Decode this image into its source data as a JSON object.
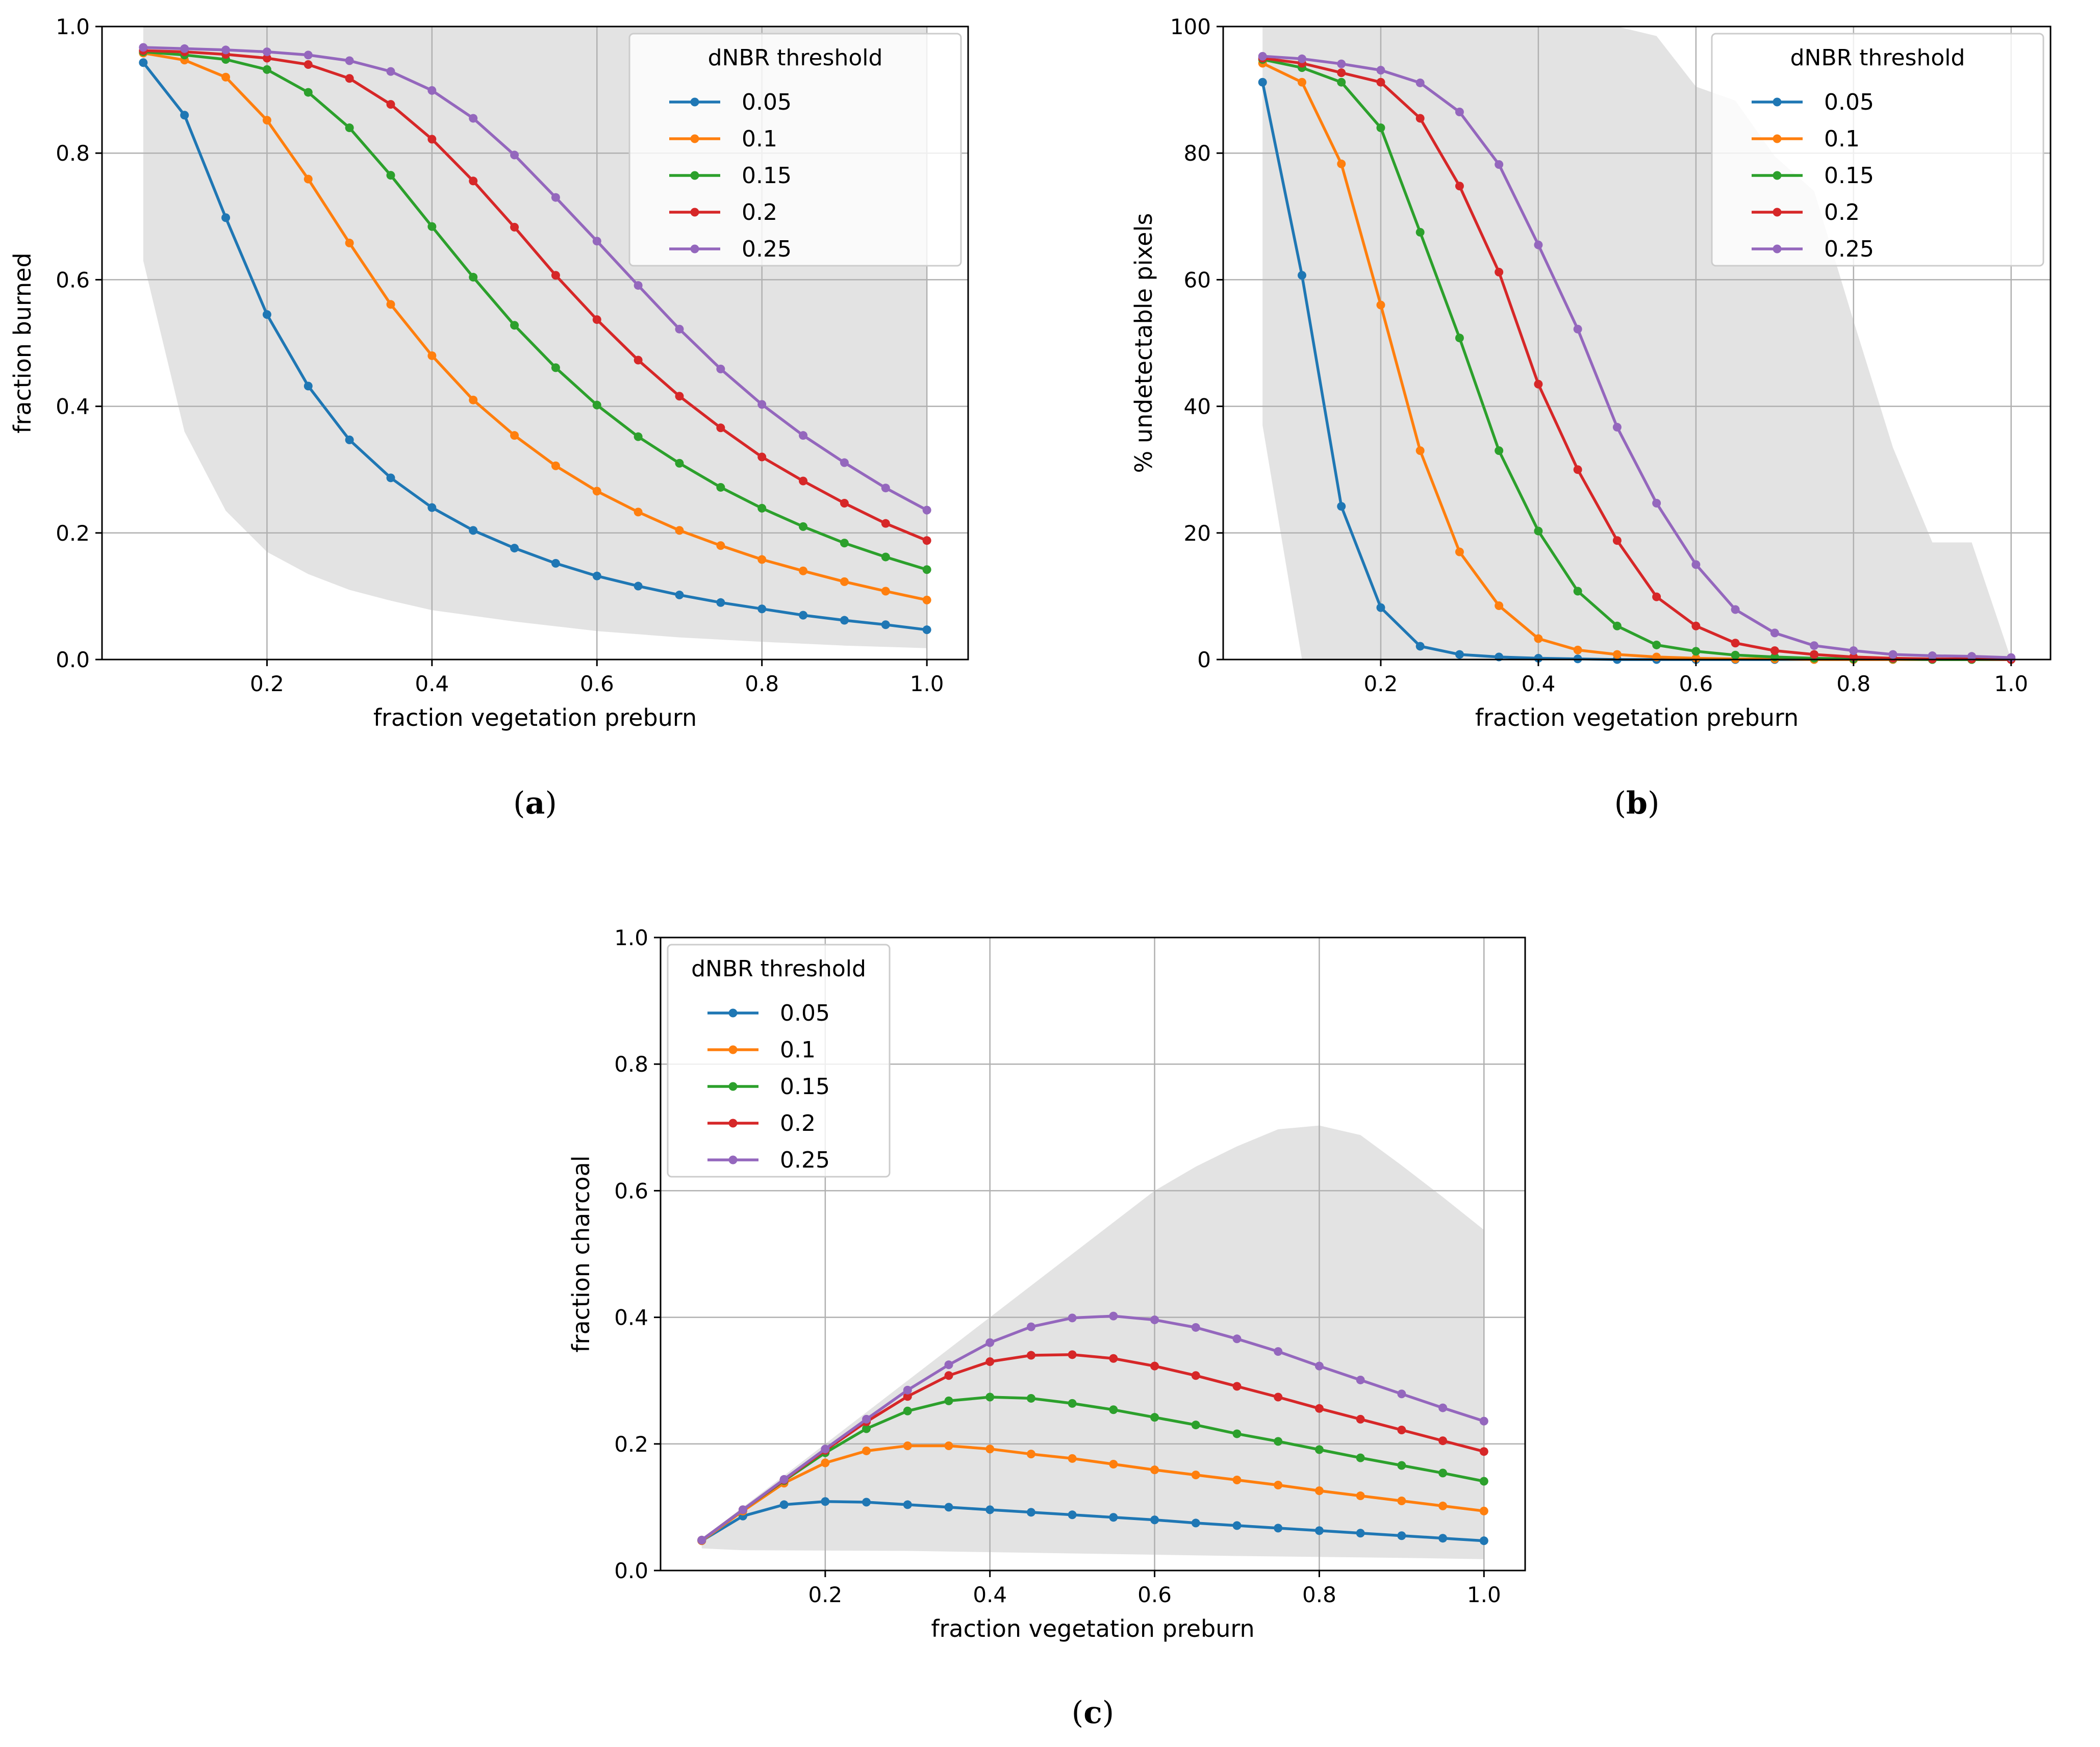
{
  "legend_title": "dNBR threshold",
  "colors": {
    "0.05": "#1f77b4",
    "0.1": "#ff7f0e",
    "0.15": "#2ca02c",
    "0.2": "#d62728",
    "0.25": "#9467bd",
    "band": "#e3e3e3",
    "grid": "#b0b0b0"
  },
  "chart_data": [
    {
      "type": "line",
      "panel": "a",
      "caption_letter": "a",
      "legend_position": "top-right",
      "xlabel": "fraction vegetation preburn",
      "ylabel": "fraction burned",
      "xlim": [
        0.0,
        1.05
      ],
      "ylim": [
        0.0,
        1.0
      ],
      "xticks": [
        0.2,
        0.4,
        0.6,
        0.8,
        1.0
      ],
      "xtick_labels": [
        "0.2",
        "0.4",
        "0.6",
        "0.8",
        "1.0"
      ],
      "yticks": [
        0.0,
        0.2,
        0.4,
        0.6,
        0.8,
        1.0
      ],
      "ytick_labels": [
        "0.0",
        "0.2",
        "0.4",
        "0.6",
        "0.8",
        "1.0"
      ],
      "grid": true,
      "x": [
        0.05,
        0.1,
        0.15,
        0.2,
        0.25,
        0.3,
        0.35,
        0.4,
        0.45,
        0.5,
        0.55,
        0.6,
        0.65,
        0.7,
        0.75,
        0.8,
        0.85,
        0.9,
        0.95,
        1.0
      ],
      "band": {
        "upper": [
          [
            0.05,
            1.0
          ],
          [
            1.0,
            1.0
          ],
          [
            1.0,
            0.54
          ]
        ],
        "lower": [
          [
            0.05,
            0.63
          ],
          [
            0.1,
            0.36
          ],
          [
            0.15,
            0.235
          ],
          [
            0.2,
            0.17
          ],
          [
            0.25,
            0.135
          ],
          [
            0.3,
            0.11
          ],
          [
            0.35,
            0.093
          ],
          [
            0.4,
            0.078
          ],
          [
            0.5,
            0.06
          ],
          [
            0.6,
            0.045
          ],
          [
            0.7,
            0.035
          ],
          [
            0.8,
            0.028
          ],
          [
            0.9,
            0.022
          ],
          [
            1.0,
            0.018
          ]
        ]
      },
      "series": [
        {
          "name": "0.05",
          "values": [
            0.943,
            0.86,
            0.698,
            0.545,
            0.432,
            0.347,
            0.287,
            0.24,
            0.204,
            0.176,
            0.152,
            0.132,
            0.116,
            0.102,
            0.09,
            0.08,
            0.07,
            0.062,
            0.055,
            0.047
          ]
        },
        {
          "name": "0.1",
          "values": [
            0.958,
            0.947,
            0.92,
            0.852,
            0.759,
            0.658,
            0.561,
            0.48,
            0.41,
            0.354,
            0.306,
            0.266,
            0.233,
            0.204,
            0.18,
            0.158,
            0.14,
            0.123,
            0.108,
            0.094
          ]
        },
        {
          "name": "0.15",
          "values": [
            0.96,
            0.955,
            0.948,
            0.932,
            0.896,
            0.84,
            0.765,
            0.684,
            0.604,
            0.528,
            0.461,
            0.402,
            0.352,
            0.31,
            0.272,
            0.239,
            0.21,
            0.184,
            0.162,
            0.142
          ]
        },
        {
          "name": "0.2",
          "values": [
            0.962,
            0.96,
            0.956,
            0.95,
            0.94,
            0.918,
            0.877,
            0.822,
            0.756,
            0.683,
            0.607,
            0.537,
            0.473,
            0.416,
            0.366,
            0.32,
            0.282,
            0.247,
            0.215,
            0.188
          ]
        },
        {
          "name": "0.25",
          "values": [
            0.967,
            0.965,
            0.963,
            0.96,
            0.955,
            0.946,
            0.929,
            0.899,
            0.855,
            0.797,
            0.73,
            0.661,
            0.591,
            0.522,
            0.459,
            0.403,
            0.354,
            0.311,
            0.271,
            0.236
          ]
        }
      ]
    },
    {
      "type": "line",
      "panel": "b",
      "caption_letter": "b",
      "legend_position": "top-right",
      "xlabel": "fraction vegetation preburn",
      "ylabel": "% undetectable pixels",
      "xlim": [
        0.0,
        1.05
      ],
      "ylim": [
        0,
        100
      ],
      "xticks": [
        0.2,
        0.4,
        0.6,
        0.8,
        1.0
      ],
      "xtick_labels": [
        "0.2",
        "0.4",
        "0.6",
        "0.8",
        "1.0"
      ],
      "yticks": [
        0,
        20,
        40,
        60,
        80,
        100
      ],
      "ytick_labels": [
        "0",
        "20",
        "40",
        "60",
        "80",
        "100"
      ],
      "grid": true,
      "x": [
        0.05,
        0.1,
        0.15,
        0.2,
        0.25,
        0.3,
        0.35,
        0.4,
        0.45,
        0.5,
        0.55,
        0.6,
        0.65,
        0.7,
        0.75,
        0.8,
        0.85,
        0.9,
        0.95,
        1.0
      ],
      "band": {
        "upper": [
          [
            0.05,
            100
          ],
          [
            0.45,
            100
          ],
          [
            0.5,
            100
          ],
          [
            0.55,
            98.5
          ],
          [
            0.6,
            90.5
          ],
          [
            0.65,
            88.3
          ],
          [
            0.7,
            79.5
          ],
          [
            0.75,
            74
          ],
          [
            0.8,
            53.5
          ],
          [
            0.85,
            33.5
          ],
          [
            0.9,
            18.5
          ],
          [
            0.95,
            18.5
          ],
          [
            1.0,
            0
          ]
        ],
        "lower": [
          [
            0.05,
            37
          ],
          [
            0.1,
            0
          ]
        ]
      },
      "series": [
        {
          "name": "0.05",
          "values": [
            91.2,
            60.7,
            24.2,
            8.2,
            2.1,
            0.8,
            0.4,
            0.2,
            0.1,
            0.0,
            0.0,
            0.0,
            0.0,
            0.0,
            0.0,
            0.0,
            0.0,
            0.0,
            0.0,
            0.0
          ]
        },
        {
          "name": "0.1",
          "values": [
            94.2,
            91.2,
            78.3,
            56.0,
            33.0,
            17.0,
            8.5,
            3.3,
            1.5,
            0.8,
            0.4,
            0.2,
            0.1,
            0.1,
            0.0,
            0.0,
            0.0,
            0.0,
            0.0,
            0.0
          ]
        },
        {
          "name": "0.15",
          "values": [
            94.8,
            93.5,
            91.2,
            84.0,
            67.5,
            50.8,
            33.0,
            20.3,
            10.8,
            5.3,
            2.3,
            1.3,
            0.7,
            0.4,
            0.2,
            0.1,
            0.1,
            0.0,
            0.0,
            0.0
          ]
        },
        {
          "name": "0.2",
          "values": [
            95.0,
            94.2,
            92.7,
            91.2,
            85.5,
            74.8,
            61.2,
            43.5,
            30.0,
            18.8,
            9.9,
            5.3,
            2.6,
            1.4,
            0.8,
            0.4,
            0.2,
            0.1,
            0.1,
            0.0
          ]
        },
        {
          "name": "0.25",
          "values": [
            95.3,
            94.9,
            94.1,
            93.1,
            91.1,
            86.5,
            78.2,
            65.5,
            52.2,
            36.7,
            24.7,
            15.0,
            7.9,
            4.2,
            2.2,
            1.4,
            0.8,
            0.6,
            0.5,
            0.3
          ]
        }
      ]
    },
    {
      "type": "line",
      "panel": "c",
      "caption_letter": "c",
      "legend_position": "top-left",
      "xlabel": "fraction vegetation preburn",
      "ylabel": "fraction charcoal",
      "xlim": [
        0.0,
        1.05
      ],
      "ylim": [
        0.0,
        1.0
      ],
      "xticks": [
        0.2,
        0.4,
        0.6,
        0.8,
        1.0
      ],
      "xtick_labels": [
        "0.2",
        "0.4",
        "0.6",
        "0.8",
        "1.0"
      ],
      "yticks": [
        0.0,
        0.2,
        0.4,
        0.6,
        0.8,
        1.0
      ],
      "ytick_labels": [
        "0.0",
        "0.2",
        "0.4",
        "0.6",
        "0.8",
        "1.0"
      ],
      "grid": true,
      "x": [
        0.05,
        0.1,
        0.15,
        0.2,
        0.25,
        0.3,
        0.35,
        0.4,
        0.45,
        0.5,
        0.55,
        0.6,
        0.65,
        0.7,
        0.75,
        0.8,
        0.85,
        0.9,
        0.95,
        1.0
      ],
      "band": {
        "upper": [
          [
            0.05,
            0.05
          ],
          [
            0.1,
            0.1
          ],
          [
            0.2,
            0.2
          ],
          [
            0.3,
            0.3
          ],
          [
            0.4,
            0.4
          ],
          [
            0.5,
            0.5
          ],
          [
            0.55,
            0.55
          ],
          [
            0.6,
            0.6
          ],
          [
            0.65,
            0.638
          ],
          [
            0.7,
            0.67
          ],
          [
            0.75,
            0.697
          ],
          [
            0.8,
            0.703
          ],
          [
            0.85,
            0.688
          ],
          [
            0.9,
            0.64
          ],
          [
            0.95,
            0.59
          ],
          [
            1.0,
            0.538
          ]
        ],
        "lower": [
          [
            0.05,
            0.035
          ],
          [
            0.1,
            0.032
          ],
          [
            0.3,
            0.031
          ],
          [
            0.5,
            0.027
          ],
          [
            0.7,
            0.023
          ],
          [
            0.9,
            0.02
          ],
          [
            1.0,
            0.018
          ]
        ]
      },
      "series": [
        {
          "name": "0.05",
          "values": [
            0.047,
            0.086,
            0.104,
            0.109,
            0.108,
            0.104,
            0.1,
            0.096,
            0.092,
            0.088,
            0.084,
            0.08,
            0.075,
            0.071,
            0.067,
            0.063,
            0.059,
            0.055,
            0.051,
            0.047
          ]
        },
        {
          "name": "0.1",
          "values": [
            0.047,
            0.094,
            0.138,
            0.17,
            0.189,
            0.197,
            0.197,
            0.192,
            0.184,
            0.177,
            0.168,
            0.159,
            0.151,
            0.143,
            0.135,
            0.126,
            0.118,
            0.11,
            0.102,
            0.094
          ]
        },
        {
          "name": "0.15",
          "values": [
            0.048,
            0.096,
            0.142,
            0.186,
            0.224,
            0.252,
            0.268,
            0.274,
            0.272,
            0.264,
            0.254,
            0.242,
            0.23,
            0.216,
            0.204,
            0.191,
            0.178,
            0.166,
            0.154,
            0.141
          ]
        },
        {
          "name": "0.2",
          "values": [
            0.048,
            0.096,
            0.143,
            0.19,
            0.235,
            0.275,
            0.308,
            0.33,
            0.34,
            0.341,
            0.335,
            0.323,
            0.308,
            0.291,
            0.274,
            0.256,
            0.239,
            0.222,
            0.205,
            0.188
          ]
        },
        {
          "name": "0.25",
          "values": [
            0.048,
            0.096,
            0.144,
            0.192,
            0.239,
            0.285,
            0.325,
            0.36,
            0.385,
            0.399,
            0.402,
            0.396,
            0.384,
            0.366,
            0.346,
            0.323,
            0.301,
            0.279,
            0.257,
            0.236
          ]
        }
      ]
    }
  ]
}
